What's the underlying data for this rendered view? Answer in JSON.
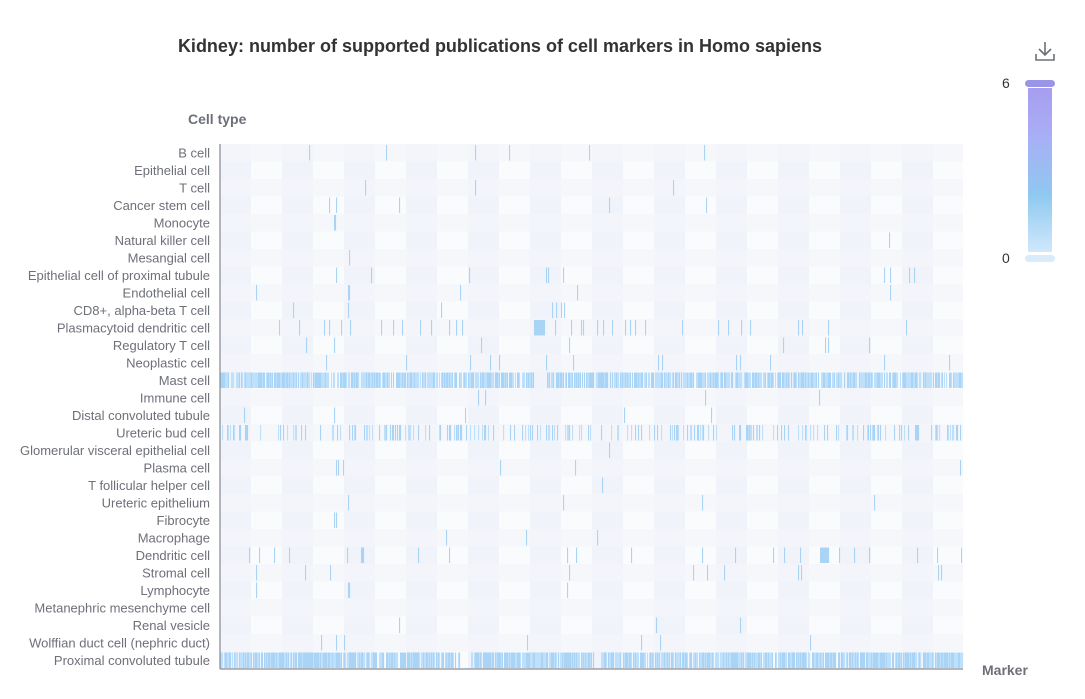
{
  "chart_data": {
    "type": "heatmap",
    "title": "Kidney: number of supported publications of cell markers in Homo sapiens",
    "xlabel": "Marker",
    "ylabel": "Cell type",
    "visual_map": {
      "min": 0,
      "max": 6,
      "colors": [
        "#cfe8fb",
        "#8fc8f0",
        "#a8aff5",
        "#a79df0"
      ]
    },
    "rows": [
      {
        "name": "B cell",
        "hits": [
          89,
          166,
          255,
          289,
          369,
          484
        ]
      },
      {
        "name": "Epithelial cell",
        "hits": []
      },
      {
        "name": "T cell",
        "hits": [
          145,
          255,
          453
        ]
      },
      {
        "name": "Cancer stem cell",
        "hits": [
          109,
          116,
          179,
          389,
          486
        ]
      },
      {
        "name": "Monocyte",
        "hits": [
          114,
          115
        ]
      },
      {
        "name": "Natural killer cell",
        "hits": [
          669
        ]
      },
      {
        "name": "Mesangial cell",
        "hits": [
          129
        ]
      },
      {
        "name": "Epithelial cell of proximal tubule",
        "hits": [
          116,
          151,
          249,
          326,
          328,
          343,
          664,
          670,
          689,
          694
        ]
      },
      {
        "name": "Endothelial cell",
        "hits": [
          36,
          128,
          129,
          240,
          357,
          670
        ]
      },
      {
        "name": "CD8+, alpha-beta T cell",
        "hits": [
          73,
          128,
          221,
          332,
          336,
          341,
          344
        ]
      },
      {
        "name": "Plasmacytoid dendritic cell",
        "hits": [
          59,
          79,
          104,
          109,
          121,
          130,
          161,
          173,
          182,
          200,
          211,
          229,
          236,
          242,
          314,
          315,
          316,
          317,
          318,
          319,
          320,
          321,
          322,
          323,
          324,
          335,
          351,
          361,
          363,
          377,
          383,
          392,
          405,
          410,
          415,
          425,
          462,
          498,
          508,
          521,
          530,
          578,
          582,
          608,
          686
        ]
      },
      {
        "name": "Regulatory T cell",
        "hits": [
          86,
          114,
          261,
          349,
          563,
          605,
          608,
          649
        ]
      },
      {
        "name": "Neoplastic cell",
        "hits": [
          106,
          186,
          250,
          270,
          279,
          326,
          353,
          438,
          442,
          516,
          520,
          550,
          664,
          729
        ]
      },
      {
        "name": "Mast cell",
        "density": 0.82,
        "gap": [
          314,
          325
        ]
      },
      {
        "name": "Immune cell",
        "hits": [
          258,
          265,
          485,
          599
        ]
      },
      {
        "name": "Distal convoluted tubule",
        "hits": [
          24,
          114,
          245,
          404,
          491
        ]
      },
      {
        "name": "Ureteric bud cell",
        "density": 0.27
      },
      {
        "name": "Glomerular visceral epithelial cell",
        "hits": [
          389
        ]
      },
      {
        "name": "Plasma cell",
        "hits": [
          116,
          118,
          123,
          280,
          355,
          740
        ]
      },
      {
        "name": "T follicular helper cell",
        "hits": [
          382
        ]
      },
      {
        "name": "Ureteric epithelium",
        "hits": [
          128,
          343,
          482,
          654
        ]
      },
      {
        "name": "Fibrocyte",
        "hits": [
          114,
          116
        ]
      },
      {
        "name": "Macrophage",
        "hits": [
          226,
          306,
          377
        ]
      },
      {
        "name": "Dendritic cell",
        "hits": [
          29,
          39,
          54,
          69,
          127,
          141,
          142,
          143,
          198,
          229,
          347,
          356,
          411,
          482,
          515,
          553,
          564,
          580,
          600,
          601,
          602,
          603,
          604,
          605,
          606,
          607,
          608,
          619,
          634,
          649,
          697,
          717,
          741
        ]
      },
      {
        "name": "Stromal cell",
        "hits": [
          36,
          85,
          110,
          349,
          473,
          487,
          504,
          578,
          581,
          718,
          721
        ]
      },
      {
        "name": "Lymphocyte",
        "hits": [
          36,
          128,
          129,
          347
        ]
      },
      {
        "name": "Metanephric mesenchyme cell",
        "hits": []
      },
      {
        "name": "Renal vesicle",
        "hits": [
          179,
          436,
          520
        ]
      },
      {
        "name": "Wolffian duct cell (nephric duct)",
        "hits": [
          101,
          116,
          124,
          307,
          421,
          440,
          590
        ]
      },
      {
        "name": "Proximal convoluted tubule",
        "density": 0.9,
        "gaps": [
          [
            240,
            250
          ],
          [
            374,
            380
          ]
        ]
      }
    ]
  }
}
